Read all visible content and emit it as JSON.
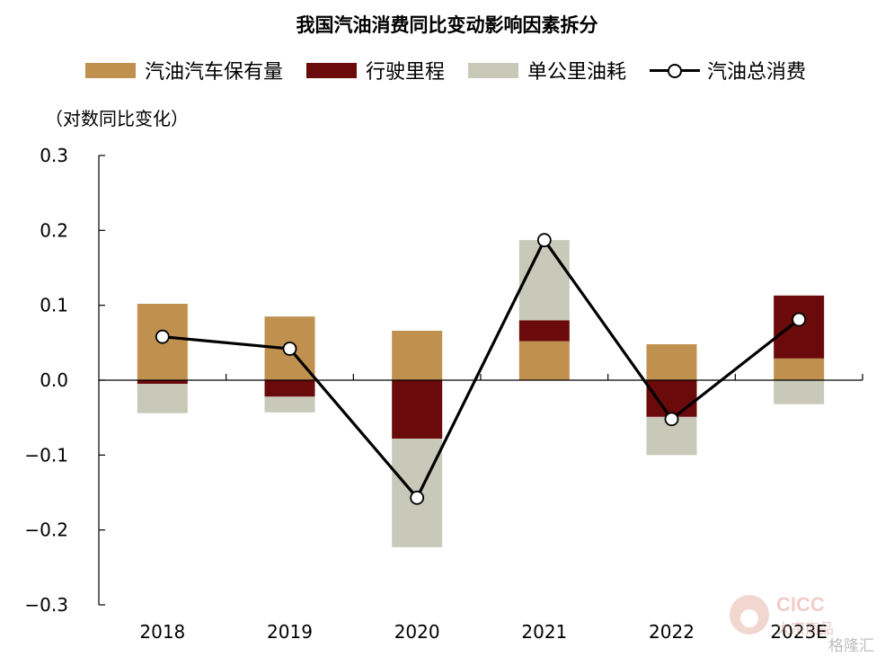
{
  "chart_data": {
    "type": "bar",
    "stacked": true,
    "title": "我国汽油消费同比变动影响因素拆分",
    "unit_label": "（对数同比变化）",
    "categories": [
      "2018",
      "2019",
      "2020",
      "2021",
      "2022",
      "2023E"
    ],
    "ylim": [
      -0.3,
      0.3
    ],
    "yticks": [
      0.3,
      0.2,
      0.1,
      0.0,
      -0.1,
      -0.2,
      -0.3
    ],
    "ytick_labels": [
      "0.3",
      "0.2",
      "0.1",
      "0.0",
      "−0.1",
      "−0.2",
      "−0.3"
    ],
    "grid": false,
    "legend_position": "top",
    "series": [
      {
        "name": "汽油汽车保有量",
        "kind": "bar",
        "color": "#c0904f",
        "values": [
          0.102,
          0.085,
          0.066,
          0.052,
          0.048,
          0.029
        ]
      },
      {
        "name": "行驶里程",
        "kind": "bar",
        "color": "#6b0a0a",
        "values": [
          -0.005,
          -0.022,
          -0.078,
          0.028,
          -0.049,
          0.084
        ]
      },
      {
        "name": "单公里油耗",
        "kind": "bar",
        "color": "#c9c9b9",
        "values": [
          -0.039,
          -0.021,
          -0.145,
          0.107,
          -0.051,
          -0.032
        ]
      },
      {
        "name": "汽油总消费",
        "kind": "line",
        "color": "#000000",
        "values": [
          0.058,
          0.042,
          -0.157,
          0.187,
          -0.052,
          0.081
        ]
      }
    ]
  },
  "watermark": {
    "brand": "CICC",
    "sub": "大宗商品",
    "mark": "格隆汇"
  }
}
